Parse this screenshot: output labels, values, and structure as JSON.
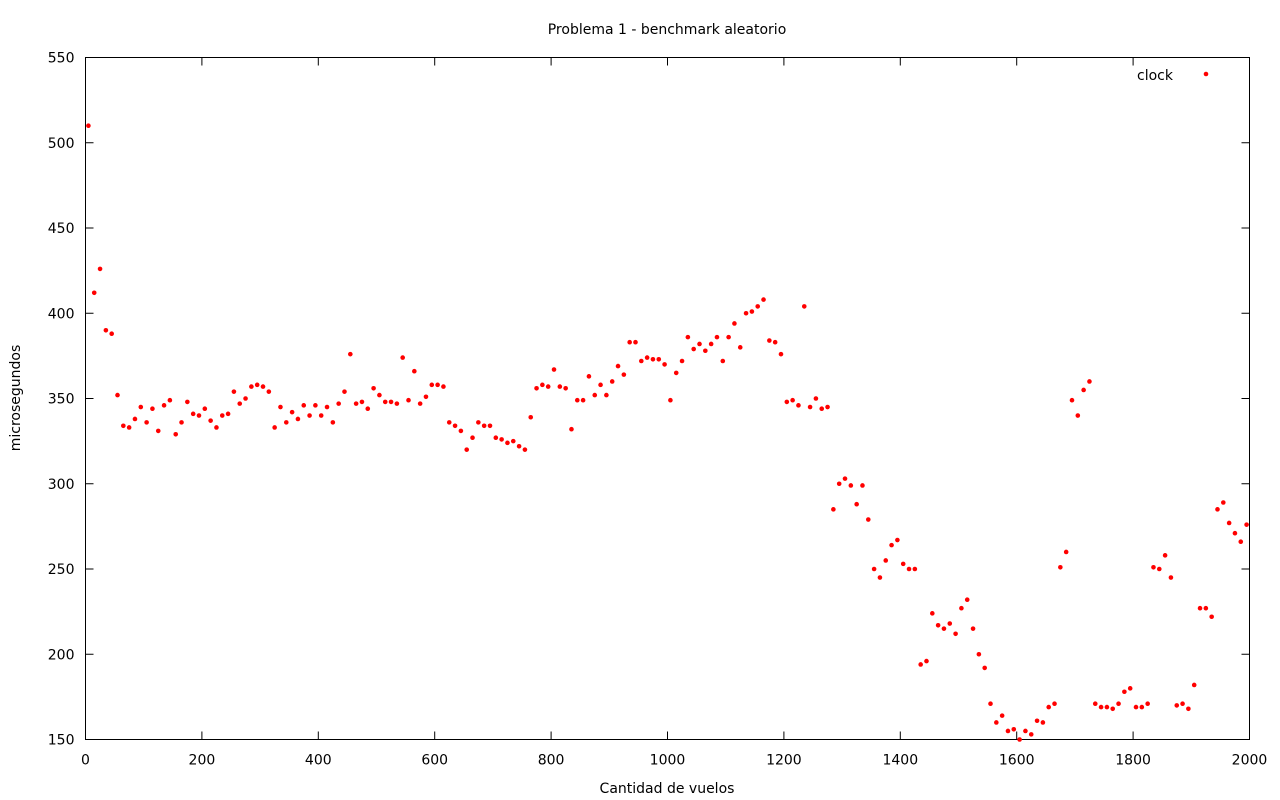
{
  "chart_data": {
    "type": "scatter",
    "title": "Problema 1 - benchmark aleatorio",
    "xlabel": "Cantidad de vuelos",
    "ylabel": "microsegundos",
    "xlim": [
      0,
      2000
    ],
    "ylim": [
      150,
      550
    ],
    "xticks": [
      0,
      200,
      400,
      600,
      800,
      1000,
      1200,
      1400,
      1600,
      1800,
      2000
    ],
    "yticks": [
      150,
      200,
      250,
      300,
      350,
      400,
      450,
      500,
      550
    ],
    "grid": false,
    "legend_position": "top-right",
    "series": [
      {
        "name": "clock",
        "color": "#ff0000",
        "x": [
          5,
          15,
          25,
          35,
          45,
          55,
          65,
          75,
          85,
          95,
          105,
          115,
          125,
          135,
          145,
          155,
          165,
          175,
          185,
          195,
          205,
          215,
          225,
          235,
          245,
          255,
          265,
          275,
          285,
          295,
          305,
          315,
          325,
          335,
          345,
          355,
          365,
          375,
          385,
          395,
          405,
          415,
          425,
          435,
          445,
          455,
          465,
          475,
          485,
          495,
          505,
          515,
          525,
          535,
          545,
          555,
          565,
          575,
          585,
          595,
          605,
          615,
          625,
          635,
          645,
          655,
          665,
          675,
          685,
          695,
          705,
          715,
          725,
          735,
          745,
          755,
          765,
          775,
          785,
          795,
          805,
          815,
          825,
          835,
          845,
          855,
          865,
          875,
          885,
          895,
          905,
          915,
          925,
          935,
          945,
          955,
          965,
          975,
          985,
          995,
          1005,
          1015,
          1025,
          1035,
          1045,
          1055,
          1065,
          1075,
          1085,
          1095,
          1105,
          1115,
          1125,
          1135,
          1145,
          1155,
          1165,
          1175,
          1185,
          1195,
          1205,
          1215,
          1225,
          1235,
          1245,
          1255,
          1265,
          1275,
          1285,
          1295,
          1305,
          1315,
          1325,
          1335,
          1345,
          1355,
          1365,
          1375,
          1385,
          1395,
          1405,
          1415,
          1425,
          1435,
          1445,
          1455,
          1465,
          1475,
          1485,
          1495,
          1505,
          1515,
          1525,
          1535,
          1545,
          1555,
          1565,
          1575,
          1585,
          1595,
          1605,
          1615,
          1625,
          1635,
          1645,
          1655,
          1665,
          1675,
          1685,
          1695,
          1705,
          1715,
          1725,
          1735,
          1745,
          1755,
          1765,
          1775,
          1785,
          1795,
          1805,
          1815,
          1825,
          1835,
          1845,
          1855,
          1865,
          1875,
          1885,
          1895,
          1905,
          1915,
          1925,
          1935,
          1945,
          1955,
          1965,
          1975,
          1985,
          1995
        ],
        "y": [
          510,
          412,
          426,
          390,
          388,
          352,
          334,
          333,
          338,
          345,
          336,
          344,
          331,
          346,
          349,
          329,
          336,
          348,
          341,
          340,
          344,
          337,
          333,
          340,
          341,
          354,
          347,
          350,
          357,
          358,
          357,
          354,
          333,
          345,
          336,
          342,
          338,
          346,
          340,
          346,
          340,
          345,
          336,
          347,
          354,
          376,
          347,
          348,
          344,
          356,
          352,
          348,
          348,
          347,
          374,
          349,
          366,
          347,
          351,
          358,
          358,
          357,
          336,
          334,
          331,
          320,
          327,
          336,
          334,
          334,
          327,
          326,
          324,
          325,
          322,
          320,
          339,
          356,
          358,
          357,
          367,
          357,
          356,
          332,
          349,
          349,
          363,
          352,
          358,
          352,
          360,
          369,
          364,
          383,
          383,
          372,
          374,
          373,
          373,
          370,
          349,
          365,
          372,
          386,
          379,
          382,
          378,
          382,
          386,
          372,
          386,
          394,
          380,
          400,
          401,
          404,
          408,
          384,
          383,
          376,
          348,
          349,
          346,
          404,
          345,
          350,
          344,
          345,
          285,
          300,
          303,
          299,
          288,
          299,
          279,
          250,
          245,
          255,
          264,
          267,
          253,
          250,
          250,
          194,
          196,
          224,
          217,
          215,
          218,
          212,
          227,
          232,
          215,
          200,
          192,
          171,
          160,
          164,
          155,
          156,
          150,
          155,
          153,
          161,
          160,
          169,
          171,
          251,
          260,
          349,
          340,
          355,
          360,
          171,
          169,
          169,
          168,
          171,
          178,
          180,
          169,
          169,
          171,
          251,
          250,
          258,
          245,
          170,
          171,
          168,
          182,
          227,
          227,
          222,
          285,
          289,
          277,
          271,
          266,
          276
        ]
      }
    ]
  }
}
